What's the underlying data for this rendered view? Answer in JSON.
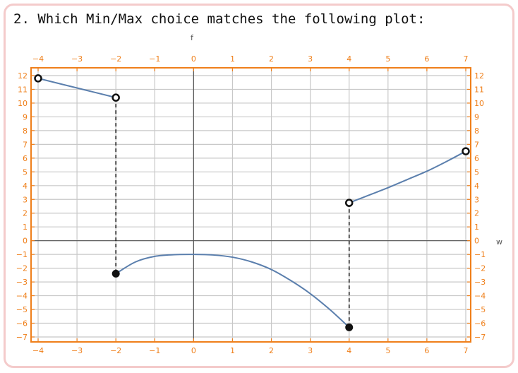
{
  "question": {
    "text": "2. Which Min/Max choice matches the following plot:"
  },
  "chart_data": {
    "type": "line",
    "xlabel": "w",
    "ylabel": "f",
    "xlim": [
      -4,
      7
    ],
    "ylim": [
      -7,
      12
    ],
    "x_ticks": [
      -4,
      -3,
      -2,
      -1,
      0,
      1,
      2,
      3,
      4,
      5,
      6,
      7
    ],
    "y_ticks": [
      -7,
      -6,
      -5,
      -4,
      -3,
      -2,
      -1,
      0,
      1,
      2,
      3,
      4,
      5,
      6,
      7,
      8,
      9,
      10,
      11,
      12
    ],
    "grid": true,
    "series": [
      {
        "x": [
          -4,
          -3,
          -2
        ],
        "y": [
          11.8,
          11.1,
          10.4
        ]
      },
      {
        "x": [
          -2,
          -1.5,
          -1,
          -0.5,
          0,
          0.5,
          1,
          1.5,
          2,
          2.5,
          3,
          3.5,
          4
        ],
        "y": [
          -2.4,
          -1.55,
          -1.14,
          -1.02,
          -1.0,
          -1.04,
          -1.2,
          -1.55,
          -2.1,
          -2.9,
          -3.85,
          -5.0,
          -6.3
        ]
      },
      {
        "x": [
          4,
          4.5,
          5,
          5.5,
          6,
          6.5,
          7
        ],
        "y": [
          2.75,
          3.3,
          3.85,
          4.45,
          5.05,
          5.75,
          6.5
        ]
      }
    ],
    "points": [
      {
        "x": -4,
        "y": 11.8,
        "filled": false
      },
      {
        "x": -2,
        "y": 10.4,
        "filled": false
      },
      {
        "x": -2,
        "y": -2.4,
        "filled": true
      },
      {
        "x": 4,
        "y": -6.3,
        "filled": true
      },
      {
        "x": 4,
        "y": 2.75,
        "filled": false
      },
      {
        "x": 7,
        "y": 6.5,
        "filled": false
      }
    ],
    "dashed_connectors": [
      {
        "x": -2,
        "y_from": 10.4,
        "y_to": -2.4
      },
      {
        "x": 4,
        "y_from": 2.75,
        "y_to": -6.3
      }
    ],
    "colors": {
      "frame": "#ef7f1a",
      "curve": "#5b7fad",
      "grid": "#c8c8c8",
      "axis": "#555555"
    }
  }
}
